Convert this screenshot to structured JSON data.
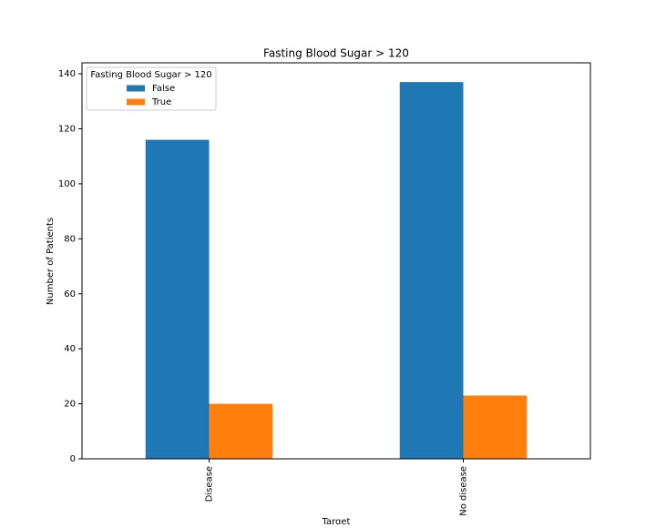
{
  "chart_data": {
    "type": "bar",
    "title": "Fasting Blood Sugar > 120",
    "xlabel": "Target",
    "ylabel": "Number of Patients",
    "categories": [
      "Disease",
      "No disease"
    ],
    "series": [
      {
        "name": "False",
        "color": "#1f77b4",
        "values": [
          116,
          137
        ]
      },
      {
        "name": "True",
        "color": "#ff7f0e",
        "values": [
          20,
          23
        ]
      }
    ],
    "legend_title": "Fasting Blood Sugar > 120",
    "legend": "upper left",
    "ylim": [
      0,
      144
    ],
    "yticks": [
      0,
      20,
      40,
      60,
      80,
      100,
      120,
      140
    ],
    "grid": false
  }
}
